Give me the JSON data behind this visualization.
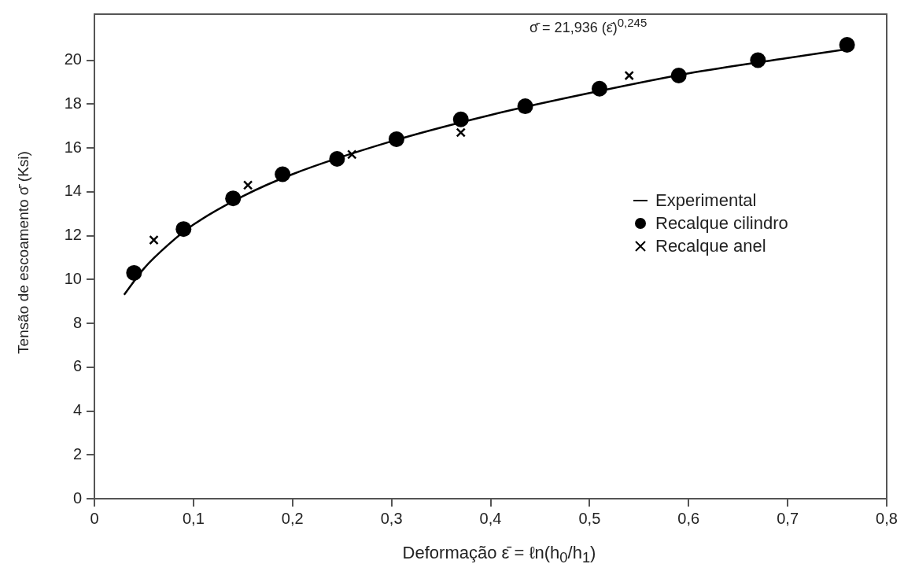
{
  "chart_data": {
    "type": "scatter",
    "xlabel": "Deformação  ε̄ = ℓn(h$_{0}$/h$_{1}$)",
    "ylabel": "Tensão de escoamento σ̄  (Ksi)",
    "annotations": [
      "σ̄ = 21,936 (ε̄)$^{0,245}$"
    ],
    "xlim": [
      0,
      0.8
    ],
    "xticks": [
      {
        "value": 0,
        "label": "0"
      },
      {
        "value": 0.1,
        "label": "0,1"
      },
      {
        "value": 0.2,
        "label": "0,2"
      },
      {
        "value": 0.3,
        "label": "0,3"
      },
      {
        "value": 0.4,
        "label": "0,4"
      },
      {
        "value": 0.5,
        "label": "0,5"
      },
      {
        "value": 0.6,
        "label": "0,6"
      },
      {
        "value": 0.7,
        "label": "0,7"
      },
      {
        "value": 0.8,
        "label": "0,8"
      }
    ],
    "ylim": [
      0,
      22.1
    ],
    "yticks": [
      0,
      2,
      4,
      6,
      8,
      10,
      12,
      14,
      16,
      18,
      20
    ],
    "grid": false,
    "legend": "right",
    "series": [
      {
        "name": "Experimental",
        "type": "line",
        "color": "#000000",
        "marker": "none",
        "line_style": "solid",
        "x": [
          0.03,
          0.05,
          0.075,
          0.1,
          0.15,
          0.2,
          0.3,
          0.4,
          0.5,
          0.6,
          0.7,
          0.76
        ],
        "values": [
          9.3,
          10.5,
          11.6,
          12.5,
          13.8,
          14.8,
          16.3,
          17.5,
          18.5,
          19.4,
          20.1,
          20.5
        ]
      },
      {
        "name": "Recalque cilindro",
        "type": "scatter",
        "color": "#000000",
        "marker": "circle",
        "x": [
          0.04,
          0.09,
          0.14,
          0.19,
          0.245,
          0.305,
          0.37,
          0.435,
          0.51,
          0.59,
          0.67,
          0.76
        ],
        "values": [
          10.3,
          12.3,
          13.7,
          14.8,
          15.5,
          16.4,
          17.3,
          17.9,
          18.7,
          19.3,
          20.0,
          20.7
        ]
      },
      {
        "name": "Recalque anel",
        "type": "scatter",
        "color": "#000000",
        "marker": "cross",
        "x": [
          0.06,
          0.155,
          0.26,
          0.37,
          0.54
        ],
        "values": [
          11.8,
          14.3,
          15.7,
          16.7,
          19.3
        ]
      }
    ]
  }
}
